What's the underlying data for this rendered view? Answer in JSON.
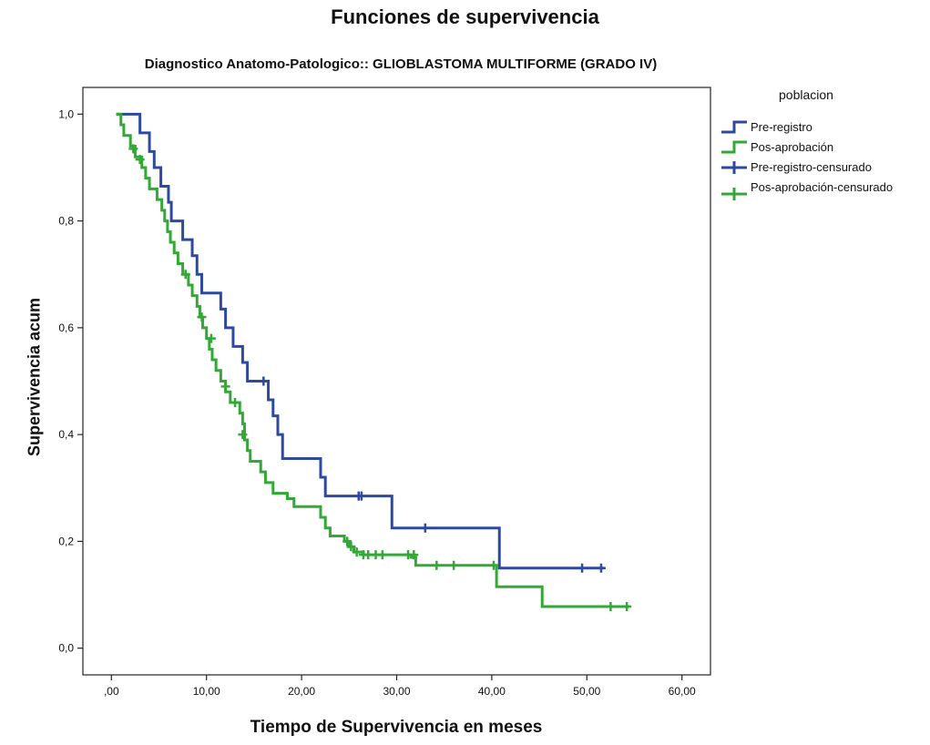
{
  "chart_data": {
    "type": "line",
    "title": "Funciones de supervivencia",
    "subtitle": "Diagnostico Anatomo-Patologico:: GLIOBLASTOMA MULTIFORME (GRADO IV)",
    "xlabel": "Tiempo de Supervivencia en meses",
    "ylabel": "Supervivencia acum",
    "xlim": [
      -3,
      63
    ],
    "ylim": [
      -0.05,
      1.05
    ],
    "x_ticks": [
      0,
      10,
      20,
      30,
      40,
      50,
      60
    ],
    "x_tick_labels": [
      ",00",
      "10,00",
      "20,00",
      "30,00",
      "40,00",
      "50,00",
      "60,00"
    ],
    "y_ticks": [
      0,
      0.2,
      0.4,
      0.6,
      0.8,
      1.0
    ],
    "y_tick_labels": [
      "0,0",
      "0,2",
      "0,4",
      "0,6",
      "0,8",
      "1,0"
    ],
    "grid": false,
    "legend_title": "poblacion",
    "legend_position": "right",
    "legend": [
      {
        "label": "Pre-registro",
        "color": "#2e4a9e",
        "marker": "step"
      },
      {
        "label": "Pos-aprobación",
        "color": "#34a836",
        "marker": "step"
      },
      {
        "label": "Pre-registro-censurado",
        "color": "#2e4a9e",
        "marker": "plus"
      },
      {
        "label": "Pos-aprobación-censurado",
        "color": "#34a836",
        "marker": "plus"
      }
    ],
    "series": [
      {
        "name": "Pre-registro",
        "color": "#2e4a9e",
        "steps": [
          [
            0.5,
            1.0
          ],
          [
            3.0,
            0.965
          ],
          [
            4.0,
            0.93
          ],
          [
            4.5,
            0.9
          ],
          [
            5.2,
            0.865
          ],
          [
            6.0,
            0.835
          ],
          [
            6.3,
            0.8
          ],
          [
            7.5,
            0.765
          ],
          [
            8.5,
            0.735
          ],
          [
            9.0,
            0.7
          ],
          [
            9.5,
            0.665
          ],
          [
            11.5,
            0.635
          ],
          [
            12.0,
            0.6
          ],
          [
            12.8,
            0.565
          ],
          [
            13.8,
            0.535
          ],
          [
            14.3,
            0.5
          ],
          [
            16.5,
            0.465
          ],
          [
            17.0,
            0.435
          ],
          [
            17.5,
            0.4
          ],
          [
            18.0,
            0.355
          ],
          [
            22.0,
            0.32
          ],
          [
            22.5,
            0.285
          ],
          [
            29.5,
            0.225
          ],
          [
            40.8,
            0.15
          ],
          [
            51.8,
            0.15
          ]
        ],
        "censored": [
          [
            16.0,
            0.5
          ],
          [
            26.0,
            0.285
          ],
          [
            26.3,
            0.285
          ],
          [
            33.0,
            0.225
          ],
          [
            49.5,
            0.15
          ],
          [
            51.5,
            0.15
          ]
        ]
      },
      {
        "name": "Pos-aprobación",
        "color": "#34a836",
        "steps": [
          [
            0.5,
            1.0
          ],
          [
            1.0,
            0.98
          ],
          [
            1.3,
            0.96
          ],
          [
            2.0,
            0.94
          ],
          [
            2.5,
            0.92
          ],
          [
            3.2,
            0.9
          ],
          [
            3.6,
            0.88
          ],
          [
            4.0,
            0.86
          ],
          [
            4.8,
            0.84
          ],
          [
            5.3,
            0.82
          ],
          [
            5.6,
            0.8
          ],
          [
            5.9,
            0.78
          ],
          [
            6.2,
            0.76
          ],
          [
            6.6,
            0.74
          ],
          [
            7.0,
            0.72
          ],
          [
            7.5,
            0.7
          ],
          [
            8.1,
            0.68
          ],
          [
            8.5,
            0.66
          ],
          [
            9.0,
            0.64
          ],
          [
            9.3,
            0.62
          ],
          [
            9.6,
            0.6
          ],
          [
            10.0,
            0.58
          ],
          [
            10.3,
            0.56
          ],
          [
            10.6,
            0.54
          ],
          [
            11.0,
            0.52
          ],
          [
            11.5,
            0.5
          ],
          [
            12.0,
            0.48
          ],
          [
            12.5,
            0.46
          ],
          [
            13.5,
            0.44
          ],
          [
            13.8,
            0.42
          ],
          [
            14.0,
            0.39
          ],
          [
            14.3,
            0.37
          ],
          [
            14.6,
            0.35
          ],
          [
            15.7,
            0.33
          ],
          [
            16.2,
            0.31
          ],
          [
            17.0,
            0.29
          ],
          [
            18.5,
            0.28
          ],
          [
            19.2,
            0.265
          ],
          [
            22.0,
            0.245
          ],
          [
            22.5,
            0.225
          ],
          [
            23.0,
            0.21
          ],
          [
            24.5,
            0.2
          ],
          [
            25.0,
            0.19
          ],
          [
            25.5,
            0.18
          ],
          [
            26.5,
            0.175
          ],
          [
            31.5,
            0.17
          ],
          [
            32.0,
            0.155
          ],
          [
            40.5,
            0.115
          ],
          [
            45.3,
            0.078
          ],
          [
            54.5,
            0.078
          ]
        ],
        "censored": [
          [
            2.3,
            0.935
          ],
          [
            3.0,
            0.915
          ],
          [
            7.8,
            0.7
          ],
          [
            9.5,
            0.62
          ],
          [
            10.5,
            0.58
          ],
          [
            12.0,
            0.49
          ],
          [
            13.0,
            0.46
          ],
          [
            13.8,
            0.4
          ],
          [
            24.8,
            0.2
          ],
          [
            25.2,
            0.19
          ],
          [
            25.8,
            0.18
          ],
          [
            26.5,
            0.175
          ],
          [
            27.0,
            0.175
          ],
          [
            27.8,
            0.175
          ],
          [
            28.5,
            0.175
          ],
          [
            31.2,
            0.175
          ],
          [
            31.8,
            0.175
          ],
          [
            34.2,
            0.155
          ],
          [
            36.0,
            0.155
          ],
          [
            40.2,
            0.155
          ],
          [
            52.5,
            0.078
          ],
          [
            54.2,
            0.078
          ]
        ]
      }
    ]
  }
}
